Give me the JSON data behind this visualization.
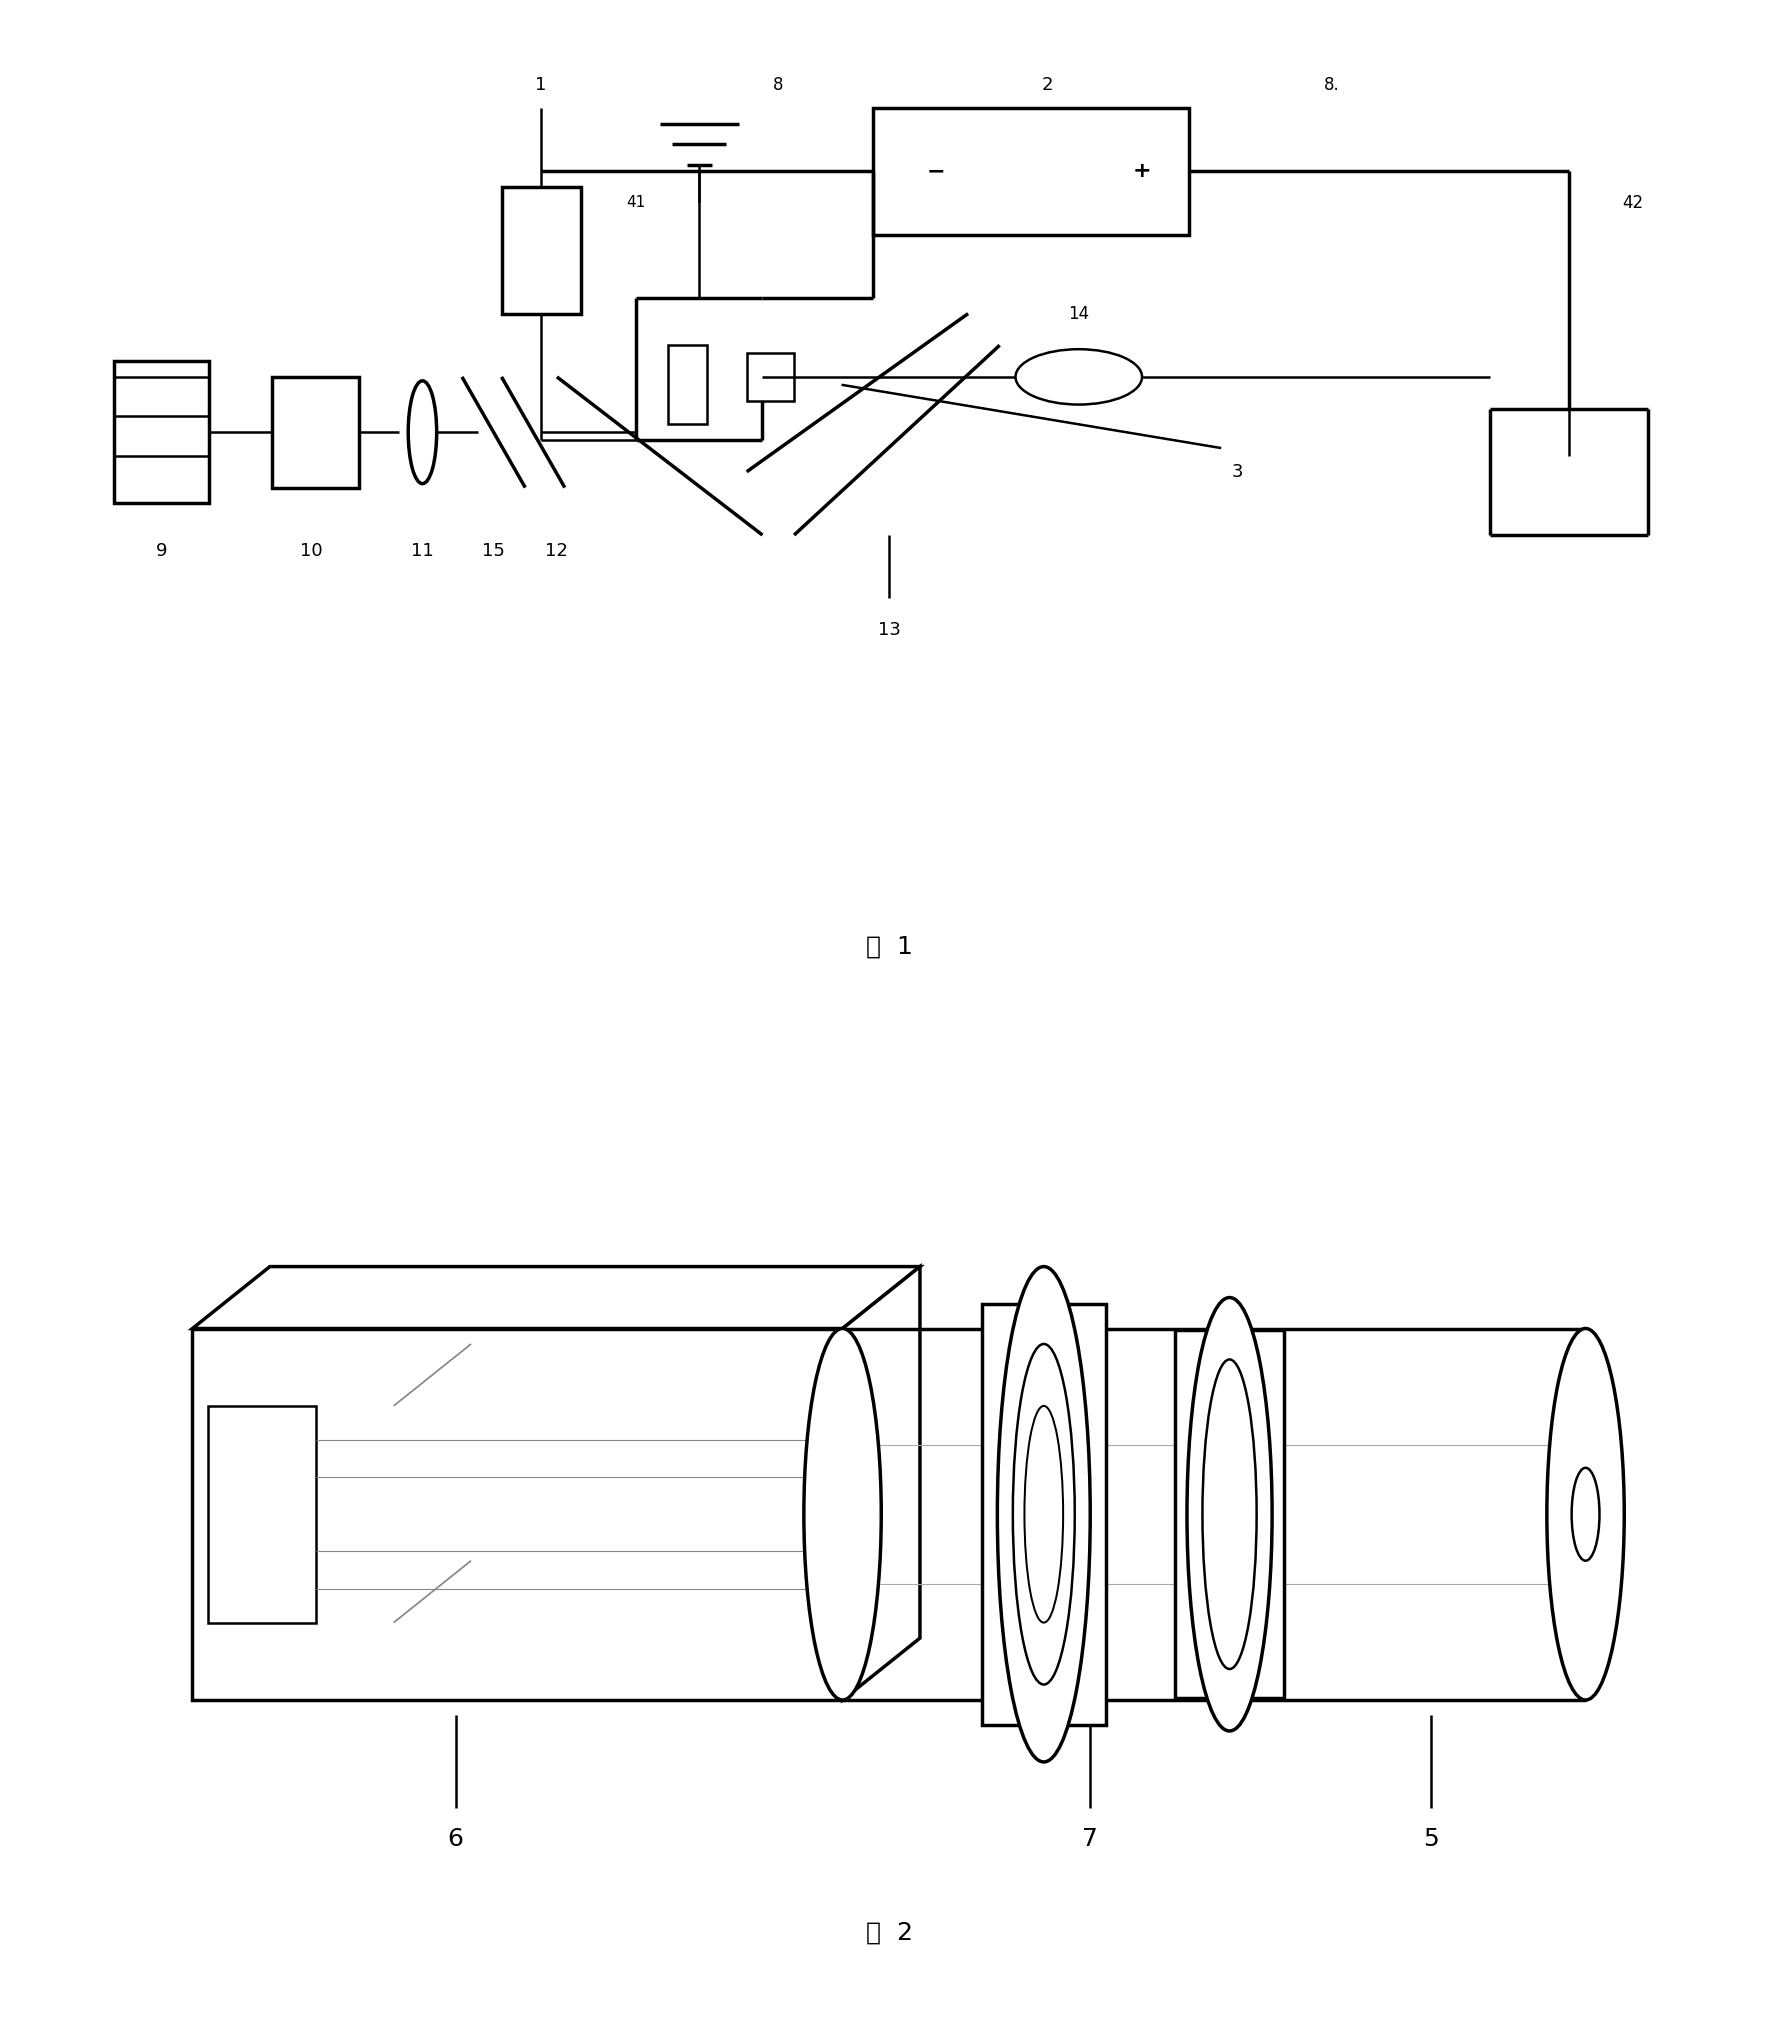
{
  "fig1_label": "图  1",
  "fig2_label": "图  2",
  "background": "#ffffff",
  "line_color": "#000000",
  "lw": 1.8,
  "lw_thick": 2.5
}
